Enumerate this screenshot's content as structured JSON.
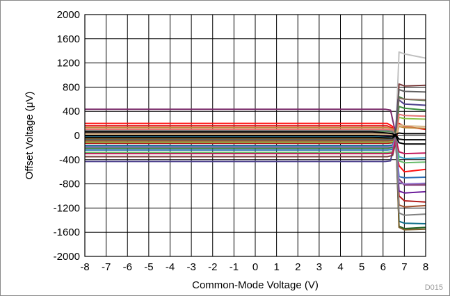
{
  "chart_data": {
    "type": "line",
    "xlabel": "Common-Mode Voltage (V)",
    "ylabel": "Offset Voltage (μV)",
    "figure_code": "D015",
    "xlim": [
      -8,
      8
    ],
    "ylim": [
      -2000,
      2000
    ],
    "xticks": [
      "-8",
      "-7",
      "-6",
      "-5",
      "-4",
      "-3",
      "-2",
      "-1",
      "0",
      "1",
      "2",
      "3",
      "4",
      "5",
      "6",
      "7",
      "8"
    ],
    "yticks": [
      "2000",
      "1600",
      "1200",
      "800",
      "400",
      "0",
      "-400",
      "-800",
      "-1200",
      "-1600",
      "-2000"
    ],
    "grid": true,
    "legend": "none",
    "series": [
      {
        "color": "#c0c0c0",
        "values": [
          [
            -8,
            45
          ],
          [
            6.2,
            45
          ],
          [
            6.4,
            30
          ],
          [
            6.6,
            10
          ],
          [
            6.75,
            1380
          ],
          [
            7.0,
            1350
          ],
          [
            8,
            1280
          ]
        ]
      },
      {
        "color": "#7a2a6a",
        "values": [
          [
            -8,
            435
          ],
          [
            6.1,
            435
          ],
          [
            6.35,
            420
          ],
          [
            6.55,
            100
          ],
          [
            6.7,
            -700
          ],
          [
            7.0,
            -820
          ],
          [
            8,
            -820
          ]
        ]
      },
      {
        "color": "#4b3f8c",
        "values": [
          [
            -8,
            -430
          ],
          [
            6.1,
            -430
          ],
          [
            6.35,
            -420
          ],
          [
            6.55,
            -100
          ],
          [
            6.7,
            600
          ],
          [
            7.0,
            520
          ],
          [
            8,
            500
          ]
        ]
      },
      {
        "color": "#ff1010",
        "values": [
          [
            -8,
            200
          ],
          [
            6.2,
            200
          ],
          [
            6.45,
            150
          ],
          [
            6.6,
            -150
          ],
          [
            6.75,
            -500
          ],
          [
            7.0,
            -600
          ],
          [
            8,
            -560
          ]
        ]
      },
      {
        "color": "#e01818",
        "values": [
          [
            -8,
            160
          ],
          [
            6.2,
            160
          ],
          [
            6.45,
            120
          ],
          [
            6.6,
            -100
          ],
          [
            6.75,
            200
          ],
          [
            7.0,
            150
          ],
          [
            8,
            100
          ]
        ]
      },
      {
        "color": "#b01a1a",
        "values": [
          [
            -8,
            -130
          ],
          [
            6.2,
            -130
          ],
          [
            6.45,
            -120
          ],
          [
            6.6,
            50
          ],
          [
            6.75,
            -1000
          ],
          [
            7.0,
            -1080
          ],
          [
            8,
            -1100
          ]
        ]
      },
      {
        "color": "#7a3a3a",
        "values": [
          [
            -8,
            -350
          ],
          [
            6.2,
            -350
          ],
          [
            6.45,
            -330
          ],
          [
            6.6,
            -100
          ],
          [
            6.75,
            850
          ],
          [
            7.0,
            820
          ],
          [
            8,
            830
          ]
        ]
      },
      {
        "color": "#2e7d32",
        "values": [
          [
            -8,
            -210
          ],
          [
            6.2,
            -210
          ],
          [
            6.45,
            -200
          ],
          [
            6.6,
            0
          ],
          [
            6.75,
            640
          ],
          [
            7.0,
            600
          ],
          [
            8,
            580
          ]
        ]
      },
      {
        "color": "#1b5e20",
        "values": [
          [
            -8,
            -60
          ],
          [
            6.2,
            -60
          ],
          [
            6.45,
            -50
          ],
          [
            6.6,
            100
          ],
          [
            6.75,
            -1500
          ],
          [
            7.0,
            -1540
          ],
          [
            8,
            -1520
          ]
        ]
      },
      {
        "color": "#388e3c",
        "values": [
          [
            -8,
            70
          ],
          [
            6.2,
            70
          ],
          [
            6.45,
            60
          ],
          [
            6.6,
            -50
          ],
          [
            6.75,
            480
          ],
          [
            7.0,
            450
          ],
          [
            8,
            420
          ]
        ]
      },
      {
        "color": "#8bc34a",
        "values": [
          [
            -8,
            -110
          ],
          [
            6.2,
            -110
          ],
          [
            6.45,
            -100
          ],
          [
            6.6,
            0
          ],
          [
            6.75,
            300
          ],
          [
            7.0,
            280
          ],
          [
            8,
            270
          ]
        ]
      },
      {
        "color": "#0f6e8a",
        "values": [
          [
            -8,
            -170
          ],
          [
            6.2,
            -170
          ],
          [
            6.45,
            -160
          ],
          [
            6.6,
            -20
          ],
          [
            6.75,
            -1420
          ],
          [
            7.0,
            -1450
          ],
          [
            8,
            -1460
          ]
        ]
      },
      {
        "color": "#2e6fb5",
        "values": [
          [
            -8,
            -240
          ],
          [
            6.2,
            -240
          ],
          [
            6.45,
            -230
          ],
          [
            6.6,
            -40
          ],
          [
            6.75,
            -680
          ],
          [
            7.0,
            -700
          ],
          [
            8,
            -690
          ]
        ]
      },
      {
        "color": "#3aa0c8",
        "values": [
          [
            -8,
            -20
          ],
          [
            6.2,
            -20
          ],
          [
            6.45,
            -10
          ],
          [
            6.6,
            40
          ],
          [
            6.75,
            -350
          ],
          [
            7.0,
            -380
          ],
          [
            8,
            -370
          ]
        ]
      },
      {
        "color": "#66bb6a",
        "values": [
          [
            -8,
            -280
          ],
          [
            6.2,
            -280
          ],
          [
            6.45,
            -270
          ],
          [
            6.6,
            -60
          ],
          [
            6.75,
            -420
          ],
          [
            7.0,
            -450
          ],
          [
            8,
            -440
          ]
        ]
      },
      {
        "color": "#a0522d",
        "values": [
          [
            -8,
            -90
          ],
          [
            6.2,
            -90
          ],
          [
            6.45,
            -80
          ],
          [
            6.6,
            20
          ],
          [
            6.75,
            -1150
          ],
          [
            7.0,
            -1180
          ],
          [
            8,
            -1160
          ]
        ]
      },
      {
        "color": "#8d6e63",
        "values": [
          [
            -8,
            40
          ],
          [
            6.2,
            40
          ],
          [
            6.45,
            35
          ],
          [
            6.6,
            -10
          ],
          [
            6.75,
            620
          ],
          [
            7.0,
            600
          ],
          [
            8,
            590
          ]
        ]
      },
      {
        "color": "#c28a3e",
        "values": [
          [
            -8,
            130
          ],
          [
            6.2,
            130
          ],
          [
            6.45,
            110
          ],
          [
            6.6,
            -30
          ],
          [
            6.75,
            150
          ],
          [
            7.0,
            130
          ],
          [
            8,
            120
          ]
        ]
      },
      {
        "color": "#7b5e2a",
        "values": [
          [
            -8,
            -50
          ],
          [
            6.2,
            -50
          ],
          [
            6.45,
            -45
          ],
          [
            6.6,
            10
          ],
          [
            6.75,
            -1520
          ],
          [
            7.0,
            -1560
          ],
          [
            8,
            -1550
          ]
        ]
      },
      {
        "color": "#6a1b9a",
        "values": [
          [
            -8,
            10
          ],
          [
            6.2,
            10
          ],
          [
            6.45,
            5
          ],
          [
            6.6,
            -30
          ],
          [
            6.75,
            -920
          ],
          [
            7.0,
            -950
          ],
          [
            8,
            -930
          ]
        ]
      },
      {
        "color": "#9575cd",
        "values": [
          [
            -8,
            -190
          ],
          [
            6.2,
            -190
          ],
          [
            6.45,
            -180
          ],
          [
            6.6,
            -30
          ],
          [
            6.75,
            -780
          ],
          [
            7.0,
            -800
          ],
          [
            8,
            -790
          ]
        ]
      },
      {
        "color": "#c2185b",
        "values": [
          [
            -8,
            -300
          ],
          [
            6.2,
            -300
          ],
          [
            6.45,
            -290
          ],
          [
            6.6,
            -50
          ],
          [
            6.75,
            -270
          ],
          [
            7.0,
            -300
          ],
          [
            8,
            -290
          ]
        ]
      },
      {
        "color": "#e57373",
        "values": [
          [
            -8,
            100
          ],
          [
            6.2,
            100
          ],
          [
            6.45,
            90
          ],
          [
            6.6,
            -20
          ],
          [
            6.75,
            350
          ],
          [
            7.0,
            330
          ],
          [
            8,
            320
          ]
        ]
      },
      {
        "color": "#808080",
        "values": [
          [
            -8,
            80
          ],
          [
            6.2,
            80
          ],
          [
            6.45,
            70
          ],
          [
            6.6,
            -10
          ],
          [
            6.75,
            -1280
          ],
          [
            7.0,
            -1320
          ],
          [
            8,
            -1300
          ]
        ]
      },
      {
        "color": "#606060",
        "values": [
          [
            -8,
            -70
          ],
          [
            6.2,
            -70
          ],
          [
            6.45,
            -60
          ],
          [
            6.6,
            10
          ],
          [
            6.75,
            760
          ],
          [
            7.0,
            730
          ],
          [
            8,
            720
          ]
        ]
      },
      {
        "color": "#d4b483",
        "values": [
          [
            -8,
            20
          ],
          [
            6.2,
            20
          ],
          [
            6.45,
            15
          ],
          [
            6.6,
            -10
          ],
          [
            6.75,
            180
          ],
          [
            7.0,
            160
          ],
          [
            8,
            150
          ]
        ]
      },
      {
        "color": "#000000",
        "values": [
          [
            -8,
            60
          ],
          [
            5.5,
            60
          ],
          [
            6.2,
            40
          ],
          [
            6.45,
            30
          ],
          [
            6.6,
            -10
          ],
          [
            6.75,
            -120
          ],
          [
            7.0,
            -140
          ],
          [
            8,
            -140
          ]
        ]
      },
      {
        "color": "#000000",
        "values": [
          [
            -8,
            0
          ],
          [
            5.5,
            0
          ],
          [
            6.2,
            -10
          ],
          [
            6.45,
            -10
          ],
          [
            6.6,
            20
          ],
          [
            6.75,
            40
          ],
          [
            7.0,
            30
          ],
          [
            8,
            30
          ]
        ]
      },
      {
        "color": "#000000",
        "values": [
          [
            -8,
            -30
          ],
          [
            5.5,
            -30
          ],
          [
            6.2,
            -40
          ],
          [
            6.45,
            -40
          ],
          [
            6.6,
            10
          ],
          [
            6.75,
            -60
          ],
          [
            7.0,
            -70
          ],
          [
            8,
            -70
          ]
        ]
      }
    ]
  }
}
